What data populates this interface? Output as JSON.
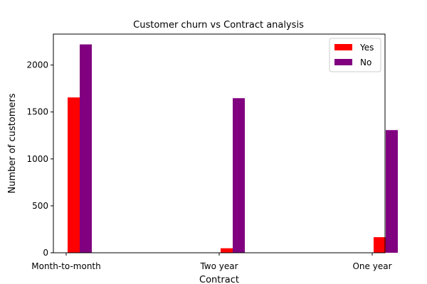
{
  "chart_data": {
    "type": "bar",
    "title": "Customer churn vs Contract analysis",
    "xlabel": "Contract",
    "ylabel": "Number of customers",
    "categories": [
      "Month-to-month",
      "Two year",
      "One year"
    ],
    "series": [
      {
        "name": "Yes",
        "color": "#ff0000",
        "values": [
          1655,
          48,
          166
        ]
      },
      {
        "name": "No",
        "color": "#800080",
        "values": [
          2220,
          1647,
          1307
        ]
      }
    ],
    "ylim": [
      0,
      2330
    ],
    "yticks": [
      0,
      500,
      1000,
      1500,
      2000
    ],
    "grid": false,
    "legend_position": "top-right"
  }
}
